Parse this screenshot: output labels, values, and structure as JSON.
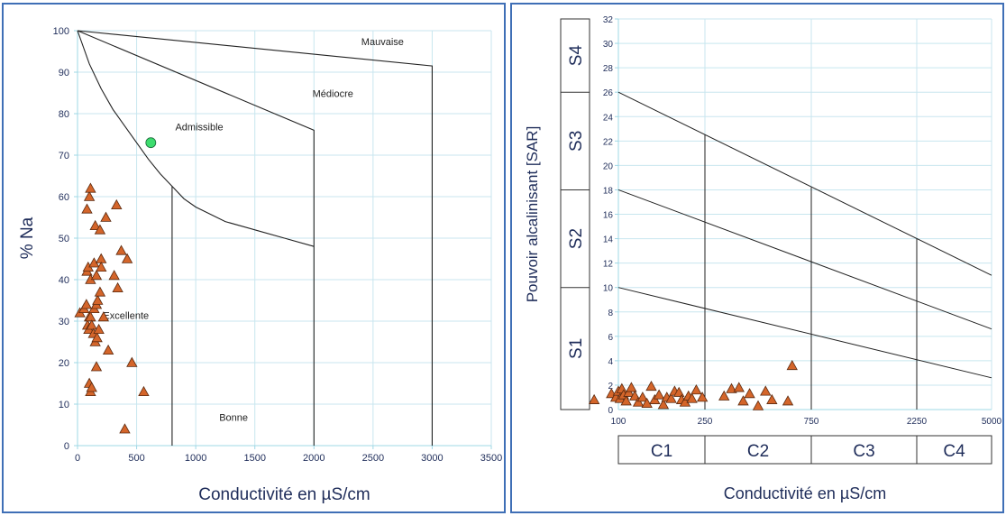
{
  "chart_data": [
    {
      "type": "scatter",
      "xlabel": "Conductivité en µS/cm",
      "ylabel": "% Na",
      "xlim": [
        0,
        3500
      ],
      "ylim": [
        0,
        100
      ],
      "xticks": [
        0,
        500,
        1000,
        1500,
        2000,
        2500,
        3000,
        3500
      ],
      "yticks": [
        0,
        10,
        20,
        30,
        40,
        50,
        60,
        70,
        80,
        90,
        100
      ],
      "grid": true,
      "regions": [
        "Mauvaise",
        "Médiocre",
        "Admissible",
        "Excellente",
        "Bonne"
      ],
      "colors": {
        "triangles": "#d4652a",
        "circle": "#3ddc6e",
        "lines": "#222222",
        "grid": "#c8e6ef"
      },
      "series": [
        {
          "marker": "triangle",
          "points": [
            [
              20,
              32
            ],
            [
              55,
              33
            ],
            [
              75,
              34
            ],
            [
              85,
              29
            ],
            [
              95,
              28
            ],
            [
              100,
              31
            ],
            [
              110,
              31
            ],
            [
              120,
              29
            ],
            [
              135,
              27
            ],
            [
              150,
              25
            ],
            [
              165,
              26
            ],
            [
              180,
              28
            ],
            [
              140,
              33
            ],
            [
              160,
              34
            ],
            [
              170,
              35
            ],
            [
              190,
              37
            ],
            [
              220,
              31
            ],
            [
              260,
              23
            ],
            [
              80,
              42
            ],
            [
              90,
              43
            ],
            [
              110,
              40
            ],
            [
              140,
              44
            ],
            [
              160,
              41
            ],
            [
              200,
              45
            ],
            [
              200,
              43
            ],
            [
              310,
              41
            ],
            [
              340,
              38
            ],
            [
              370,
              47
            ],
            [
              420,
              45
            ],
            [
              80,
              57
            ],
            [
              100,
              60
            ],
            [
              110,
              62
            ],
            [
              150,
              53
            ],
            [
              190,
              52
            ],
            [
              240,
              55
            ],
            [
              330,
              58
            ],
            [
              100,
              15
            ],
            [
              110,
              13
            ],
            [
              120,
              14
            ],
            [
              160,
              19
            ],
            [
              460,
              20
            ],
            [
              560,
              13
            ],
            [
              400,
              4
            ]
          ]
        },
        {
          "marker": "circle",
          "points": [
            [
              620,
              73
            ]
          ]
        }
      ]
    },
    {
      "type": "scatter",
      "xlabel": "Conductivité en µS/cm",
      "ylabel": "Pouvoir alcalinisant [SAR]",
      "ylim": [
        0,
        32
      ],
      "xticks": [
        "100",
        "250",
        "750",
        "2250",
        "5000"
      ],
      "yticks": [
        2,
        4,
        6,
        8,
        10,
        12,
        14,
        16,
        18,
        20,
        22,
        24,
        26,
        28,
        30,
        32
      ],
      "grid": true,
      "sar_bands": [
        "S1",
        "S2",
        "S3",
        "S4"
      ],
      "salinity_bands": [
        "C1",
        "C2",
        "C3",
        "C4"
      ],
      "colors": {
        "triangles": "#d4652a",
        "lines": "#222222",
        "grid": "#c8e6ef"
      },
      "series": [
        {
          "marker": "triangle",
          "points": [
            [
              -0.28,
              0.8
            ],
            [
              -0.08,
              1.3
            ],
            [
              -0.03,
              1.0
            ],
            [
              0.0,
              1.5
            ],
            [
              0.02,
              0.9
            ],
            [
              0.04,
              1.7
            ],
            [
              0.06,
              1.2
            ],
            [
              0.09,
              0.7
            ],
            [
              0.12,
              1.4
            ],
            [
              0.15,
              1.8
            ],
            [
              0.19,
              1.1
            ],
            [
              0.23,
              0.6
            ],
            [
              0.28,
              1.0
            ],
            [
              0.33,
              0.5
            ],
            [
              0.38,
              1.9
            ],
            [
              0.42,
              0.8
            ],
            [
              0.47,
              1.2
            ],
            [
              0.52,
              0.4
            ],
            [
              0.56,
              1.0
            ],
            [
              0.61,
              0.9
            ],
            [
              0.65,
              1.5
            ],
            [
              0.7,
              1.4
            ],
            [
              0.73,
              0.8
            ],
            [
              0.77,
              0.6
            ],
            [
              0.81,
              1.1
            ],
            [
              0.85,
              0.9
            ],
            [
              0.9,
              1.6
            ],
            [
              0.97,
              1.0
            ],
            [
              1.18,
              1.1
            ],
            [
              1.25,
              1.7
            ],
            [
              1.32,
              1.8
            ],
            [
              1.36,
              0.7
            ],
            [
              1.42,
              1.3
            ],
            [
              1.5,
              0.3
            ],
            [
              1.57,
              1.5
            ],
            [
              1.63,
              0.8
            ],
            [
              1.78,
              0.7
            ],
            [
              1.82,
              3.6
            ]
          ]
        }
      ]
    }
  ]
}
